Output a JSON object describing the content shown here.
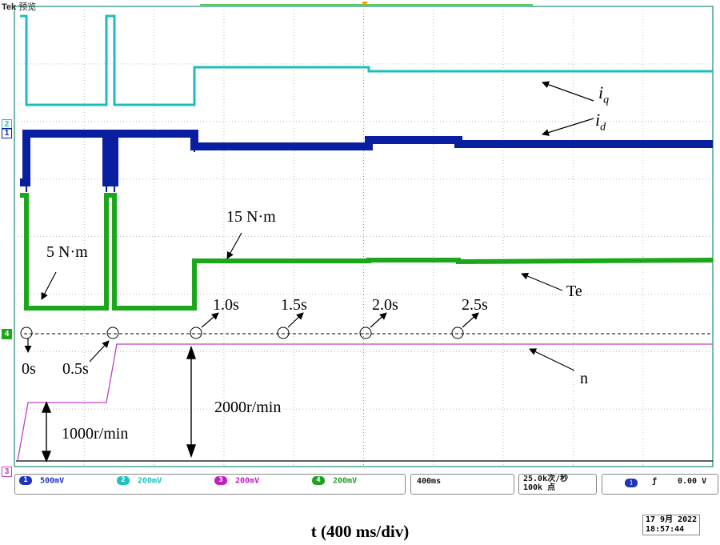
{
  "header": {
    "brand": "Tek",
    "mode": "预览"
  },
  "channel_markers": {
    "ch1": "1",
    "ch2": "2",
    "ch3": "3",
    "ch4": "4"
  },
  "annotations": {
    "iq": "i",
    "iq_sub": "q",
    "id": "i",
    "id_sub": "d",
    "te": "Te",
    "n": "n",
    "torque_low": "5 N·m",
    "torque_high": "15 N·m",
    "t0": "0s",
    "t05": "0.5s",
    "t10": "1.0s",
    "t15": "1.5s",
    "t20": "2.0s",
    "t25": "2.5s",
    "speed_low": "1000r/min",
    "speed_high": "2000r/min"
  },
  "status_bar": {
    "channels": [
      {
        "num": "1",
        "scale": "500mV",
        "color": "#2233bb"
      },
      {
        "num": "2",
        "scale": "200mV",
        "color": "#20c0c0"
      },
      {
        "num": "3",
        "scale": "200mV",
        "color": "#c020c0"
      },
      {
        "num": "4",
        "scale": "200mV",
        "color": "#20a020"
      }
    ],
    "timebase": "400ms",
    "sample_rate": "25.0k次/秒",
    "record_length": "100k 点",
    "trigger_channel": "1",
    "trigger_level": "0.00 V"
  },
  "x_axis_label": "t (400 ms/div)",
  "datetime": {
    "date": "17 9月  2022",
    "time": "18:57:44"
  },
  "colors": {
    "iq": "#1fbcbc",
    "id": "#0a1fa0",
    "te": "#1aa81a",
    "n": "#c040c0",
    "grid": "#b8b8b8",
    "frame": "#1a8a7a"
  }
}
